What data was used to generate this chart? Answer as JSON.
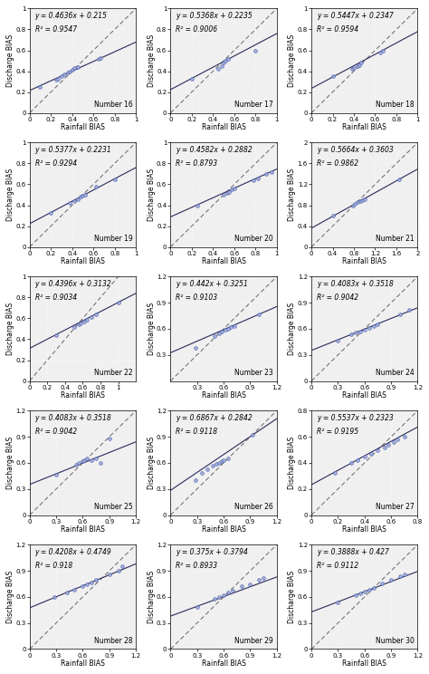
{
  "subplots": [
    {
      "number": 16,
      "equation": "y = 0.4636x + 0.215",
      "r2": "R² = 0.9547",
      "slope": 0.4636,
      "intercept": 0.215,
      "xlim": [
        0,
        1
      ],
      "ylim": [
        0,
        1
      ],
      "xticks": [
        0,
        0.2,
        0.4,
        0.6,
        0.8,
        1.0
      ],
      "yticks": [
        0,
        0.2,
        0.4,
        0.6,
        0.8,
        1.0
      ],
      "points_x": [
        0.1,
        0.25,
        0.27,
        0.3,
        0.33,
        0.36,
        0.38,
        0.4,
        0.42,
        0.45,
        0.65,
        0.67
      ],
      "points_y": [
        0.25,
        0.32,
        0.33,
        0.35,
        0.37,
        0.39,
        0.4,
        0.41,
        0.43,
        0.44,
        0.52,
        0.53
      ]
    },
    {
      "number": 17,
      "equation": "y = 0.5368x + 0.2235",
      "r2": "R² = 0.9006",
      "slope": 0.5368,
      "intercept": 0.2235,
      "xlim": [
        0,
        1
      ],
      "ylim": [
        0,
        1
      ],
      "xticks": [
        0,
        0.2,
        0.4,
        0.6,
        0.8,
        1.0
      ],
      "yticks": [
        0,
        0.2,
        0.4,
        0.6,
        0.8,
        1.0
      ],
      "points_x": [
        0.2,
        0.45,
        0.48,
        0.5,
        0.52,
        0.54,
        0.8
      ],
      "points_y": [
        0.33,
        0.42,
        0.45,
        0.48,
        0.5,
        0.52,
        0.6
      ]
    },
    {
      "number": 18,
      "equation": "y = 0.5447x + 0.2347",
      "r2": "R² = 0.9594",
      "slope": 0.5447,
      "intercept": 0.2347,
      "xlim": [
        0,
        1
      ],
      "ylim": [
        0,
        1
      ],
      "xticks": [
        0,
        0.2,
        0.4,
        0.6,
        0.8,
        1.0
      ],
      "yticks": [
        0,
        0.2,
        0.4,
        0.6,
        0.8,
        1.0
      ],
      "points_x": [
        0.2,
        0.38,
        0.4,
        0.43,
        0.45,
        0.47,
        0.65,
        0.67
      ],
      "points_y": [
        0.35,
        0.42,
        0.43,
        0.45,
        0.46,
        0.48,
        0.58,
        0.6
      ]
    },
    {
      "number": 19,
      "equation": "y = 0.5377x + 0.2231",
      "r2": "R² = 0.9294",
      "slope": 0.5377,
      "intercept": 0.2231,
      "xlim": [
        0,
        1
      ],
      "ylim": [
        0,
        1
      ],
      "xticks": [
        0,
        0.2,
        0.4,
        0.6,
        0.8,
        1.0
      ],
      "yticks": [
        0,
        0.2,
        0.4,
        0.6,
        0.8,
        1.0
      ],
      "points_x": [
        0.2,
        0.38,
        0.42,
        0.45,
        0.48,
        0.5,
        0.52,
        0.62,
        0.8
      ],
      "points_y": [
        0.33,
        0.42,
        0.44,
        0.46,
        0.48,
        0.49,
        0.5,
        0.58,
        0.65
      ]
    },
    {
      "number": 20,
      "equation": "y = 0.4582x + 0.2882",
      "r2": "R² = 0.8793",
      "slope": 0.4582,
      "intercept": 0.2882,
      "xlim": [
        0,
        1
      ],
      "ylim": [
        0,
        1
      ],
      "xticks": [
        0,
        0.2,
        0.4,
        0.6,
        0.8,
        1.0
      ],
      "yticks": [
        0,
        0.2,
        0.4,
        0.6,
        0.8,
        1.0
      ],
      "points_x": [
        0.25,
        0.5,
        0.53,
        0.55,
        0.58,
        0.6,
        0.78,
        0.82,
        0.9,
        0.95
      ],
      "points_y": [
        0.4,
        0.5,
        0.52,
        0.53,
        0.55,
        0.56,
        0.64,
        0.66,
        0.7,
        0.72
      ]
    },
    {
      "number": 21,
      "equation": "y = 0.5664x + 0.3603",
      "r2": "R² = 0.9862",
      "slope": 0.5664,
      "intercept": 0.3603,
      "xlim": [
        0,
        2
      ],
      "ylim": [
        0,
        2
      ],
      "xticks": [
        0,
        0.4,
        0.8,
        1.2,
        1.6,
        2.0
      ],
      "yticks": [
        0,
        0.4,
        0.8,
        1.2,
        1.6,
        2.0
      ],
      "points_x": [
        0.4,
        0.78,
        0.82,
        0.87,
        0.92,
        0.96,
        1.0,
        1.65
      ],
      "points_y": [
        0.6,
        0.8,
        0.83,
        0.86,
        0.88,
        0.9,
        0.92,
        1.3
      ]
    },
    {
      "number": 22,
      "equation": "y = 0.4396x + 0.3132",
      "r2": "R² = 0.9034",
      "slope": 0.4396,
      "intercept": 0.3132,
      "xlim": [
        0,
        1.2
      ],
      "ylim": [
        0,
        1.0
      ],
      "xticks": [
        0,
        0.2,
        0.4,
        0.6,
        0.8,
        1.0
      ],
      "yticks": [
        0,
        0.2,
        0.4,
        0.6,
        0.8,
        1.0
      ],
      "points_x": [
        0.3,
        0.5,
        0.55,
        0.58,
        0.62,
        0.65,
        0.7,
        0.75,
        1.0
      ],
      "points_y": [
        0.44,
        0.52,
        0.54,
        0.55,
        0.57,
        0.59,
        0.61,
        0.64,
        0.75
      ]
    },
    {
      "number": 23,
      "equation": "y = 0.442x + 0.3251",
      "r2": "R² = 0.9103",
      "slope": 0.442,
      "intercept": 0.3251,
      "xlim": [
        0,
        1.2
      ],
      "ylim": [
        0,
        1.2
      ],
      "xticks": [
        0.3,
        0.6,
        0.9,
        1.2
      ],
      "yticks": [
        0.3,
        0.6,
        0.9,
        1.2
      ],
      "points_x": [
        0.28,
        0.5,
        0.55,
        0.58,
        0.62,
        0.65,
        0.68,
        0.72,
        1.0
      ],
      "points_y": [
        0.38,
        0.52,
        0.55,
        0.57,
        0.59,
        0.6,
        0.62,
        0.63,
        0.77
      ]
    },
    {
      "number": 24,
      "equation": "y = 0.4083x + 0.3518",
      "r2": "R² = 0.9042",
      "slope": 0.4083,
      "intercept": 0.3518,
      "xlim": [
        0,
        1.2
      ],
      "ylim": [
        0,
        1.2
      ],
      "xticks": [
        0,
        0.3,
        0.6,
        0.9,
        1.2
      ],
      "yticks": [
        0,
        0.3,
        0.6,
        0.9,
        1.2
      ],
      "points_x": [
        0.3,
        0.45,
        0.5,
        0.55,
        0.6,
        0.65,
        0.7,
        0.75,
        1.0,
        1.1
      ],
      "points_y": [
        0.46,
        0.54,
        0.56,
        0.57,
        0.59,
        0.61,
        0.63,
        0.65,
        0.77,
        0.82
      ]
    },
    {
      "number": 25,
      "equation": "y = 0.4083x + 0.3518",
      "r2": "R² = 0.9042",
      "slope": 0.4083,
      "intercept": 0.3518,
      "xlim": [
        0,
        1.2
      ],
      "ylim": [
        0,
        1.2
      ],
      "xticks": [
        0,
        0.3,
        0.6,
        0.9,
        1.2
      ],
      "yticks": [
        0,
        0.3,
        0.6,
        0.9,
        1.2
      ],
      "points_x": [
        0.3,
        0.52,
        0.55,
        0.6,
        0.62,
        0.65,
        0.7,
        0.75,
        0.8,
        0.9
      ],
      "points_y": [
        0.46,
        0.58,
        0.6,
        0.62,
        0.63,
        0.65,
        0.63,
        0.65,
        0.6,
        0.88
      ]
    },
    {
      "number": 26,
      "equation": "y = 0.6867x + 0.2842",
      "r2": "R² = 0.9118",
      "slope": 0.6867,
      "intercept": 0.2842,
      "xlim": [
        0,
        1.2
      ],
      "ylim": [
        0,
        1.2
      ],
      "xticks": [
        0,
        0.3,
        0.6,
        0.9,
        1.2
      ],
      "yticks": [
        0,
        0.3,
        0.6,
        0.9,
        1.2
      ],
      "points_x": [
        0.28,
        0.35,
        0.42,
        0.48,
        0.52,
        0.55,
        0.58,
        0.6,
        0.65,
        0.93
      ],
      "points_y": [
        0.4,
        0.48,
        0.53,
        0.57,
        0.59,
        0.6,
        0.62,
        0.63,
        0.65,
        0.92
      ]
    },
    {
      "number": 27,
      "equation": "y = 0.5537x + 0.2323",
      "r2": "R² = 0.9195",
      "slope": 0.5537,
      "intercept": 0.2323,
      "xlim": [
        0,
        0.8
      ],
      "ylim": [
        0,
        0.8
      ],
      "xticks": [
        0,
        0.2,
        0.4,
        0.6,
        0.8
      ],
      "yticks": [
        0,
        0.2,
        0.4,
        0.6,
        0.8
      ],
      "points_x": [
        0.18,
        0.3,
        0.35,
        0.4,
        0.45,
        0.5,
        0.55,
        0.58,
        0.62,
        0.65,
        0.7
      ],
      "points_y": [
        0.32,
        0.4,
        0.42,
        0.45,
        0.47,
        0.5,
        0.52,
        0.54,
        0.56,
        0.58,
        0.6
      ]
    },
    {
      "number": 28,
      "equation": "y = 0.4208x + 0.4749",
      "r2": "R² = 0.918",
      "slope": 0.4208,
      "intercept": 0.4749,
      "xlim": [
        0,
        1.2
      ],
      "ylim": [
        0,
        1.2
      ],
      "xticks": [
        0,
        0.3,
        0.6,
        0.9,
        1.2
      ],
      "yticks": [
        0,
        0.3,
        0.6,
        0.9,
        1.2
      ],
      "points_x": [
        0.28,
        0.42,
        0.5,
        0.6,
        0.65,
        0.7,
        0.75,
        0.9,
        1.0,
        1.05
      ],
      "points_y": [
        0.6,
        0.65,
        0.68,
        0.72,
        0.75,
        0.77,
        0.8,
        0.86,
        0.9,
        0.95
      ]
    },
    {
      "number": 29,
      "equation": "y = 0.375x + 0.3794",
      "r2": "R² = 0.8933",
      "slope": 0.375,
      "intercept": 0.3794,
      "xlim": [
        0,
        1.2
      ],
      "ylim": [
        0,
        1.2
      ],
      "xticks": [
        0,
        0.3,
        0.6,
        0.9,
        1.2
      ],
      "yticks": [
        0,
        0.3,
        0.6,
        0.9,
        1.2
      ],
      "points_x": [
        0.3,
        0.5,
        0.55,
        0.6,
        0.65,
        0.7,
        0.8,
        0.9,
        1.0,
        1.05
      ],
      "points_y": [
        0.48,
        0.58,
        0.6,
        0.62,
        0.65,
        0.67,
        0.72,
        0.75,
        0.8,
        0.82
      ]
    },
    {
      "number": 30,
      "equation": "y = 0.3888x + 0.427",
      "r2": "R² = 0.9112",
      "slope": 0.3888,
      "intercept": 0.427,
      "xlim": [
        0,
        1.2
      ],
      "ylim": [
        0,
        1.2
      ],
      "xticks": [
        0,
        0.3,
        0.6,
        0.9,
        1.2
      ],
      "yticks": [
        0,
        0.3,
        0.6,
        0.9,
        1.2
      ],
      "points_x": [
        0.3,
        0.5,
        0.55,
        0.6,
        0.65,
        0.7,
        0.8,
        0.9,
        1.0,
        1.05
      ],
      "points_y": [
        0.54,
        0.62,
        0.64,
        0.66,
        0.68,
        0.7,
        0.76,
        0.8,
        0.84,
        0.86
      ]
    }
  ],
  "dot_facecolor": "#a0aee0",
  "dot_edgecolor": "#5060a8",
  "line_color": "#2a2a5a",
  "dashed_color": "#666666",
  "bg_color": "#f0f0f0",
  "dot_color_fill": "#c8d0f0",
  "xlabel": "Rainfall BIAS",
  "ylabel": "Discharge BIAS",
  "label_fontsize": 5.5,
  "tick_fontsize": 5.0,
  "annot_fontsize": 5.5,
  "number_fontsize": 5.5
}
